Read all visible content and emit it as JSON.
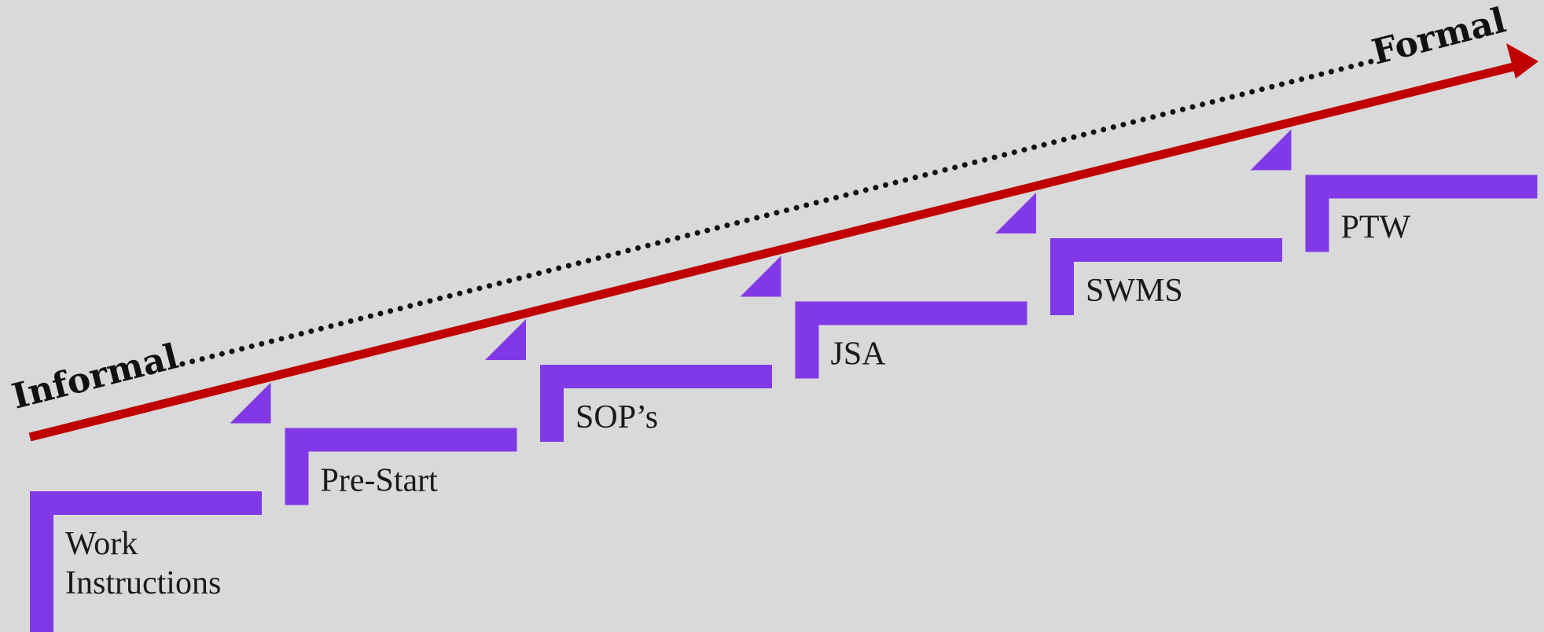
{
  "scale": {
    "start_label": "Informal",
    "end_label": "Formal"
  },
  "steps": [
    {
      "lines": [
        "Work",
        "Instructions"
      ]
    },
    {
      "lines": [
        "Pre-Start"
      ]
    },
    {
      "lines": [
        "SOP’s"
      ]
    },
    {
      "lines": [
        "JSA"
      ]
    },
    {
      "lines": [
        "SWMS"
      ]
    },
    {
      "lines": [
        "PTW"
      ]
    }
  ],
  "colors": {
    "background": "#d9d9d9",
    "step": "#8139e8",
    "arrow": "#c00000",
    "dots": "#111111"
  }
}
